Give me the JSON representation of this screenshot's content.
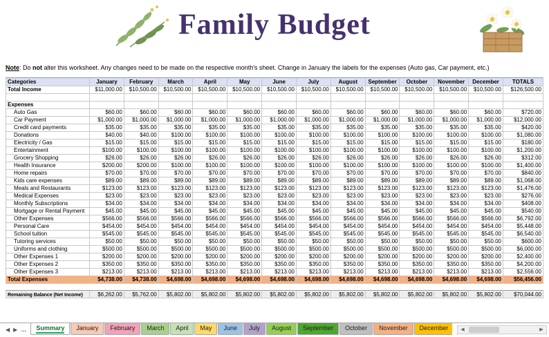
{
  "header": {
    "title": "Family Budget"
  },
  "note": {
    "label": "Note",
    "seg1": ": Do ",
    "bold": "not",
    "seg2": " alter this worksheet. Any changes need to be made on the respective month's sheet. Change in January the labels for the expenses (Auto gas, Car payment, etc.)"
  },
  "colors": {
    "title": "#46316E",
    "table_header_bg": "#D9E1F2",
    "total_expenses_bg": "#F4B183",
    "balance_row_bg": "#EDEDED",
    "grid_line": "#C8C8C8",
    "active_tab_accent": "#21A366"
  },
  "table": {
    "columns": [
      "Categories",
      "January",
      "February",
      "March",
      "April",
      "May",
      "June",
      "July",
      "August",
      "September",
      "October",
      "November",
      "December",
      "TOTALS"
    ],
    "rows": [
      {
        "type": "income",
        "label": "Total Income",
        "values": [
          "$11,000.00",
          "$10,500.00",
          "$10,500.00",
          "$10,500.00",
          "$10,500.00",
          "$10,500.00",
          "$10,500.00",
          "$10,500.00",
          "$10,500.00",
          "$10,500.00",
          "$10,500.00",
          "$10,500.00"
        ],
        "total": "$126,500.00"
      },
      {
        "type": "blank"
      },
      {
        "type": "section",
        "label": "Expenses"
      },
      {
        "type": "expense",
        "label": "Auto Gas",
        "values": [
          "$60.00",
          "$60.00",
          "$60.00",
          "$60.00",
          "$60.00",
          "$60.00",
          "$60.00",
          "$60.00",
          "$60.00",
          "$60.00",
          "$60.00",
          "$60.00"
        ],
        "total": "$720.00"
      },
      {
        "type": "expense",
        "label": "Car Payment",
        "values": [
          "$1,000.00",
          "$1,000.00",
          "$1,000.00",
          "$1,000.00",
          "$1,000.00",
          "$1,000.00",
          "$1,000.00",
          "$1,000.00",
          "$1,000.00",
          "$1,000.00",
          "$1,000.00",
          "$1,000.00"
        ],
        "total": "$12,000.00"
      },
      {
        "type": "expense",
        "label": "Credit card payments",
        "values": [
          "$35.00",
          "$35.00",
          "$35.00",
          "$35.00",
          "$35.00",
          "$35.00",
          "$35.00",
          "$35.00",
          "$35.00",
          "$35.00",
          "$35.00",
          "$35.00"
        ],
        "total": "$420.00"
      },
      {
        "type": "expense",
        "label": "Donations",
        "values": [
          "$40.00",
          "$40.00",
          "$100.00",
          "$100.00",
          "$100.00",
          "$100.00",
          "$100.00",
          "$100.00",
          "$100.00",
          "$100.00",
          "$100.00",
          "$100.00"
        ],
        "total": "$1,080.00"
      },
      {
        "type": "expense",
        "label": "Electricity / Gas",
        "values": [
          "$15.00",
          "$15.00",
          "$15.00",
          "$15.00",
          "$15.00",
          "$15.00",
          "$15.00",
          "$15.00",
          "$15.00",
          "$15.00",
          "$15.00",
          "$15.00"
        ],
        "total": "$180.00"
      },
      {
        "type": "expense",
        "label": "Entertainment",
        "values": [
          "$100.00",
          "$100.00",
          "$100.00",
          "$100.00",
          "$100.00",
          "$100.00",
          "$100.00",
          "$100.00",
          "$100.00",
          "$100.00",
          "$100.00",
          "$100.00"
        ],
        "total": "$1,200.00"
      },
      {
        "type": "expense",
        "label": "Grocery Shopping",
        "values": [
          "$26.00",
          "$26.00",
          "$26.00",
          "$26.00",
          "$26.00",
          "$26.00",
          "$26.00",
          "$26.00",
          "$26.00",
          "$26.00",
          "$26.00",
          "$26.00"
        ],
        "total": "$312.00"
      },
      {
        "type": "expense",
        "label": "Health Insurance",
        "values": [
          "$200.00",
          "$200.00",
          "$100.00",
          "$100.00",
          "$100.00",
          "$100.00",
          "$100.00",
          "$100.00",
          "$100.00",
          "$100.00",
          "$100.00",
          "$100.00"
        ],
        "total": "$1,400.00"
      },
      {
        "type": "expense",
        "label": "Home repairs",
        "values": [
          "$70.00",
          "$70.00",
          "$70.00",
          "$70.00",
          "$70.00",
          "$70.00",
          "$70.00",
          "$70.00",
          "$70.00",
          "$70.00",
          "$70.00",
          "$70.00"
        ],
        "total": "$840.00"
      },
      {
        "type": "expense",
        "label": "Kids care expenses",
        "values": [
          "$89.00",
          "$89.00",
          "$89.00",
          "$89.00",
          "$89.00",
          "$89.00",
          "$89.00",
          "$89.00",
          "$89.00",
          "$89.00",
          "$89.00",
          "$89.00"
        ],
        "total": "$1,068.00"
      },
      {
        "type": "expense",
        "label": "Meals and Restaurants",
        "values": [
          "$123.00",
          "$123.00",
          "$123.00",
          "$123.00",
          "$123.00",
          "$123.00",
          "$123.00",
          "$123.00",
          "$123.00",
          "$123.00",
          "$123.00",
          "$123.00"
        ],
        "total": "$1,476.00"
      },
      {
        "type": "expense",
        "label": "Medical Expenses",
        "values": [
          "$23.00",
          "$23.00",
          "$23.00",
          "$23.00",
          "$23.00",
          "$23.00",
          "$23.00",
          "$23.00",
          "$23.00",
          "$23.00",
          "$23.00",
          "$23.00"
        ],
        "total": "$276.00"
      },
      {
        "type": "expense",
        "label": "Monthly Subscriptions",
        "values": [
          "$34.00",
          "$34.00",
          "$34.00",
          "$34.00",
          "$34.00",
          "$34.00",
          "$34.00",
          "$34.00",
          "$34.00",
          "$34.00",
          "$34.00",
          "$34.00"
        ],
        "total": "$408.00"
      },
      {
        "type": "expense",
        "label": "Mortgage or Rental Payment",
        "values": [
          "$45.00",
          "$45.00",
          "$45.00",
          "$45.00",
          "$45.00",
          "$45.00",
          "$45.00",
          "$45.00",
          "$45.00",
          "$45.00",
          "$45.00",
          "$45.00"
        ],
        "total": "$540.00"
      },
      {
        "type": "expense",
        "label": "Other Expenses",
        "values": [
          "$566.00",
          "$566.00",
          "$566.00",
          "$566.00",
          "$566.00",
          "$566.00",
          "$566.00",
          "$566.00",
          "$566.00",
          "$566.00",
          "$566.00",
          "$566.00"
        ],
        "total": "$6,792.00"
      },
      {
        "type": "expense",
        "label": "Personal Care",
        "values": [
          "$454.00",
          "$454.00",
          "$454.00",
          "$454.00",
          "$454.00",
          "$454.00",
          "$454.00",
          "$454.00",
          "$454.00",
          "$454.00",
          "$454.00",
          "$454.00"
        ],
        "total": "$5,448.00"
      },
      {
        "type": "expense",
        "label": "School tuition",
        "values": [
          "$545.00",
          "$545.00",
          "$545.00",
          "$545.00",
          "$545.00",
          "$545.00",
          "$545.00",
          "$545.00",
          "$545.00",
          "$545.00",
          "$545.00",
          "$545.00"
        ],
        "total": "$6,540.00"
      },
      {
        "type": "expense",
        "label": "Tutoring services",
        "values": [
          "$50.00",
          "$50.00",
          "$50.00",
          "$50.00",
          "$50.00",
          "$50.00",
          "$50.00",
          "$50.00",
          "$50.00",
          "$50.00",
          "$50.00",
          "$50.00"
        ],
        "total": "$600.00"
      },
      {
        "type": "expense",
        "label": "Uniforms and clothing",
        "values": [
          "$500.00",
          "$500.00",
          "$500.00",
          "$500.00",
          "$500.00",
          "$500.00",
          "$500.00",
          "$500.00",
          "$500.00",
          "$500.00",
          "$500.00",
          "$500.00"
        ],
        "total": "$6,000.00"
      },
      {
        "type": "expense",
        "label": "Other Expenses 1",
        "values": [
          "$200.00",
          "$200.00",
          "$200.00",
          "$200.00",
          "$200.00",
          "$200.00",
          "$200.00",
          "$200.00",
          "$200.00",
          "$200.00",
          "$200.00",
          "$200.00"
        ],
        "total": "$2,400.00"
      },
      {
        "type": "expense",
        "label": "Other Expenses 2",
        "values": [
          "$350.00",
          "$350.00",
          "$350.00",
          "$350.00",
          "$350.00",
          "$350.00",
          "$350.00",
          "$350.00",
          "$350.00",
          "$350.00",
          "$350.00",
          "$350.00"
        ],
        "total": "$4,200.00"
      },
      {
        "type": "expense",
        "label": "Other Expenses 3",
        "values": [
          "$213.00",
          "$213.00",
          "$213.00",
          "$213.00",
          "$213.00",
          "$213.00",
          "$213.00",
          "$213.00",
          "$213.00",
          "$213.00",
          "$213.00",
          "$213.00"
        ],
        "total": "$2,556.00"
      },
      {
        "type": "total",
        "label": "Total Expenses",
        "values": [
          "$4,738.00",
          "$4,738.00",
          "$4,698.00",
          "$4,698.00",
          "$4,698.00",
          "$4,698.00",
          "$4,698.00",
          "$4,698.00",
          "$4,698.00",
          "$4,698.00",
          "$4,698.00",
          "$4,698.00"
        ],
        "total": "$56,456.00"
      },
      {
        "type": "spacer"
      },
      {
        "type": "balance",
        "label": "Remaining Balance (Net Income)",
        "values": [
          "$6,262.00",
          "$5,762.00",
          "$5,802.00",
          "$5,802.00",
          "$5,802.00",
          "$5,802.00",
          "$5,802.00",
          "$5,802.00",
          "$5,802.00",
          "$5,802.00",
          "$5,802.00",
          "$5,802.00"
        ],
        "total": "$70,044.00"
      }
    ]
  },
  "tabs": {
    "nav": {
      "prev": "◀",
      "next": "▶",
      "more": "…"
    },
    "items": [
      {
        "label": "Summary",
        "color": "#FFFFFF",
        "selected": true
      },
      {
        "label": "January",
        "color": "#F8C9B4"
      },
      {
        "label": "February",
        "color": "#F2A2B6"
      },
      {
        "label": "March",
        "color": "#A8D08D"
      },
      {
        "label": "April",
        "color": "#C5E0B3"
      },
      {
        "label": "May",
        "color": "#FFD965"
      },
      {
        "label": "June",
        "color": "#9CC3E5"
      },
      {
        "label": "July",
        "color": "#B3A2C7"
      },
      {
        "label": "August",
        "color": "#92D050"
      },
      {
        "label": "September",
        "color": "#4EA72E"
      },
      {
        "label": "October",
        "color": "#BFBFBF"
      },
      {
        "label": "November",
        "color": "#F4B183"
      },
      {
        "label": "December",
        "color": "#FFC000"
      }
    ]
  },
  "scrollbar": {
    "left": "◀",
    "right": "▶"
  }
}
